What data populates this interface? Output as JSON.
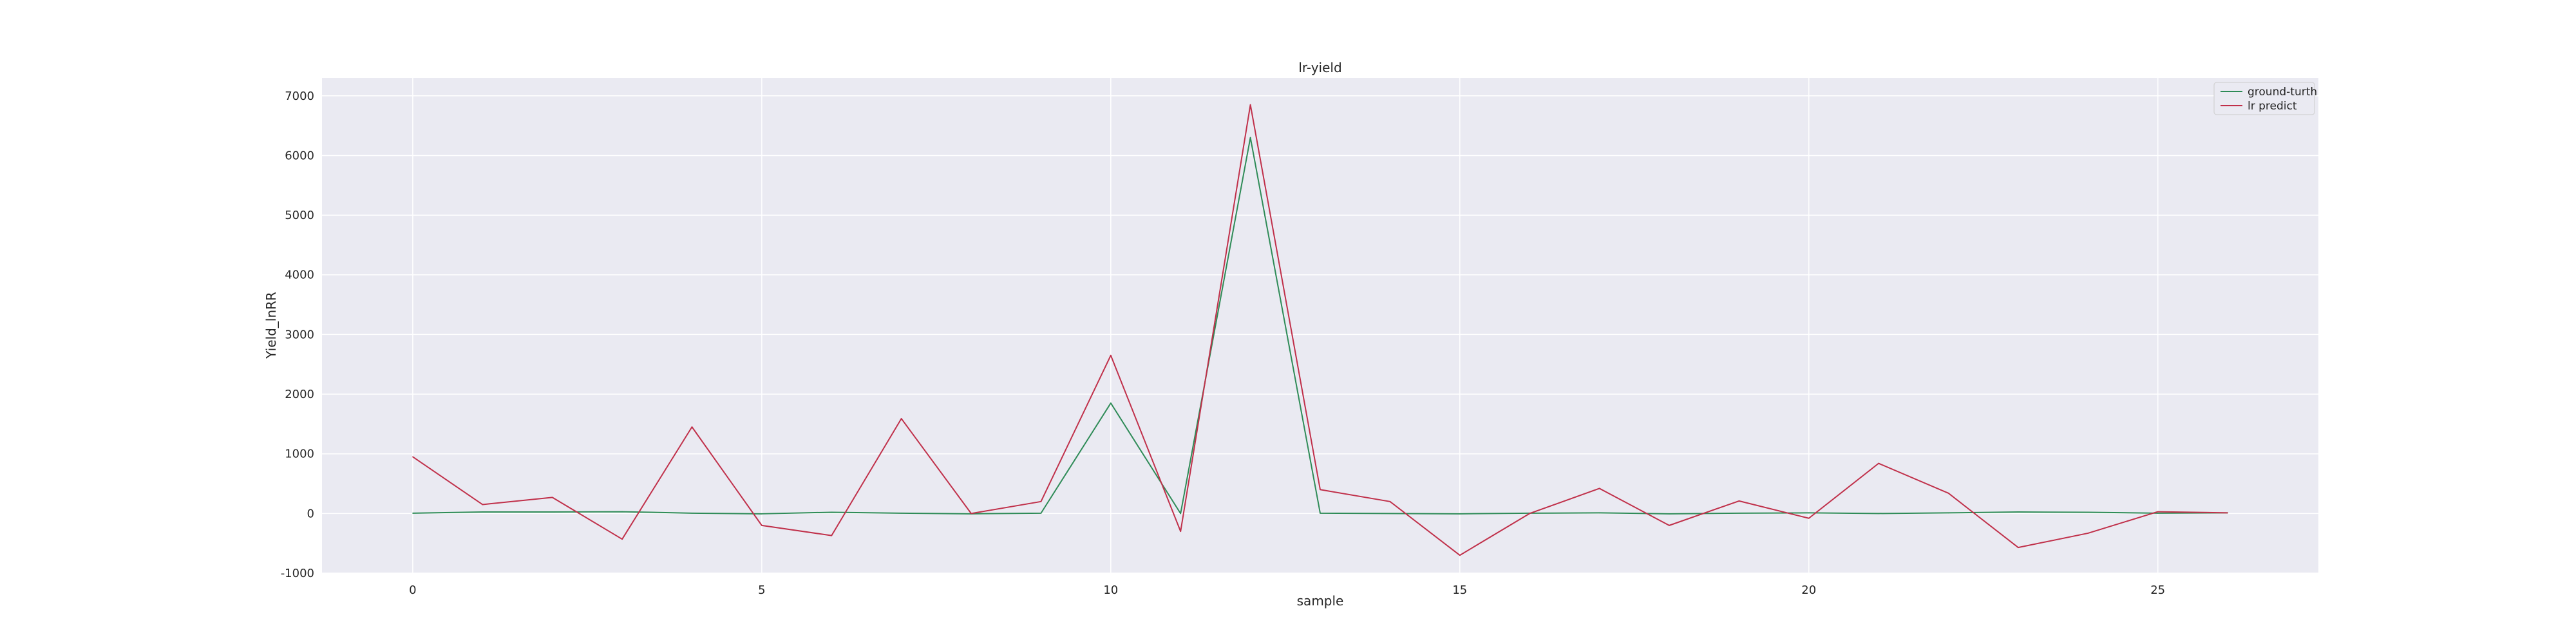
{
  "chart_data": {
    "type": "line",
    "title": "lr-yield",
    "xlabel": "sample",
    "ylabel": "Yield_lnRR",
    "xlim": [
      -1.3,
      27.3
    ],
    "ylim": [
      -1000,
      7300
    ],
    "xticks": [
      0,
      5,
      10,
      15,
      20,
      25
    ],
    "yticks": [
      -1000,
      0,
      1000,
      2000,
      3000,
      4000,
      5000,
      6000,
      7000
    ],
    "grid": true,
    "legend_position": "top-right",
    "x": [
      0,
      1,
      2,
      3,
      4,
      5,
      6,
      7,
      8,
      9,
      10,
      11,
      12,
      13,
      14,
      15,
      16,
      17,
      18,
      19,
      20,
      21,
      22,
      23,
      24,
      25,
      26
    ],
    "series": [
      {
        "name": "ground-turth",
        "color": "#2e8b57",
        "values": [
          5,
          25,
          25,
          30,
          5,
          -5,
          20,
          5,
          -5,
          5,
          1850,
          0,
          6300,
          5,
          0,
          -5,
          5,
          10,
          -5,
          5,
          10,
          0,
          10,
          25,
          20,
          5,
          10
        ]
      },
      {
        "name": "lr predict",
        "color": "#c0304a",
        "values": [
          950,
          150,
          270,
          -430,
          1450,
          -200,
          -370,
          1590,
          0,
          200,
          2650,
          -300,
          6850,
          400,
          200,
          -700,
          0,
          420,
          -200,
          210,
          -80,
          840,
          340,
          -570,
          -330,
          30,
          10
        ]
      }
    ]
  }
}
